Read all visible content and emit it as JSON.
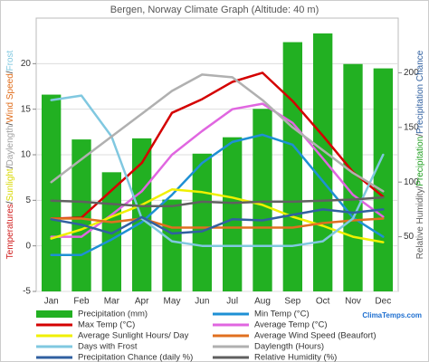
{
  "chart_data": {
    "type": "combo",
    "title": "Bergen, Norway Climate Graph (Altitude: 40 m)",
    "left_axis_label": [
      {
        "text": "Temperatures",
        "color": "#d02020"
      },
      {
        "text": "/",
        "color": "#333333"
      },
      {
        "text": "Sunlight",
        "color": "#d8d800"
      },
      {
        "text": "/",
        "color": "#333333"
      },
      {
        "text": "Daylength",
        "color": "#a0a0a0"
      },
      {
        "text": "/",
        "color": "#333333"
      },
      {
        "text": "Wind Speed",
        "color": "#e07020"
      },
      {
        "text": "/",
        "color": "#333333"
      },
      {
        "text": "Frost",
        "color": "#80c8e0"
      }
    ],
    "right_axis_label": [
      {
        "text": "Relative Humidity",
        "color": "#606060"
      },
      {
        "text": "/",
        "color": "#333333"
      },
      {
        "text": "Precipitation",
        "color": "#22a022"
      },
      {
        "text": "/",
        "color": "#333333"
      },
      {
        "text": "Precipitation Chance",
        "color": "#3060a0"
      }
    ],
    "source": "ClimaTemps.com",
    "categories": [
      "Jan",
      "Feb",
      "Mar",
      "Apr",
      "May",
      "Jun",
      "Jul",
      "Aug",
      "Sep",
      "Oct",
      "Nov",
      "Dec"
    ],
    "ylim": [
      -5,
      25
    ],
    "yticks": [
      -5,
      0,
      5,
      10,
      15,
      20
    ],
    "y2lim": [
      0,
      250
    ],
    "y2ticks": [
      50,
      100,
      150,
      200
    ],
    "grid": true,
    "series": [
      {
        "name": "Precipitation (mm)",
        "kind": "bar",
        "axis": "y2",
        "color": "#22b022",
        "values": [
          180,
          139,
          109,
          140,
          84,
          126,
          141,
          167,
          228,
          236,
          208,
          204
        ]
      },
      {
        "name": "Min Temp (°C)",
        "kind": "line",
        "color": "#1e90d4",
        "values": [
          -1,
          -1,
          0.7,
          2.6,
          5.6,
          9.1,
          11.4,
          12.2,
          11.1,
          7.1,
          3.1,
          1.0
        ]
      },
      {
        "name": "Max Temp (°C)",
        "kind": "line",
        "color": "#d40000",
        "values": [
          3,
          3.1,
          6.1,
          9.1,
          14.6,
          16.1,
          18.0,
          19.0,
          15.9,
          12.1,
          8.1,
          5.4
        ]
      },
      {
        "name": "Average Temp (°C)",
        "kind": "line",
        "color": "#e066e0",
        "values": [
          1,
          1,
          3.4,
          6,
          10,
          12.6,
          15,
          15.6,
          13.5,
          9.6,
          5.6,
          3.2
        ]
      },
      {
        "name": "Average Sunlight Hours/ Day",
        "kind": "line",
        "color": "#f0f000",
        "values": [
          0.8,
          1.8,
          3.2,
          4.5,
          6.2,
          5.9,
          5.3,
          4.5,
          3.2,
          2.2,
          1.0,
          0.4
        ]
      },
      {
        "name": "Average Wind Speed (Beaufort)",
        "kind": "line",
        "color": "#e07020",
        "values": [
          3,
          3,
          2.6,
          3,
          2,
          2,
          2,
          2,
          2,
          2.5,
          2.8,
          3
        ]
      },
      {
        "name": "Days with Frost",
        "kind": "line",
        "color": "#80c8e0",
        "values": [
          16,
          16.5,
          12,
          3,
          0.5,
          0,
          0,
          0,
          0,
          0.5,
          3,
          10
        ]
      },
      {
        "name": "Daylength (Hours)",
        "kind": "line",
        "color": "#b0b0b0",
        "values": [
          7,
          9.5,
          12,
          14.5,
          17,
          18.8,
          18.5,
          16,
          13,
          10.5,
          8,
          6
        ]
      },
      {
        "name": "Precipitation Chance (daily %)",
        "kind": "line",
        "axis": "y2",
        "color": "#3060a0",
        "values": [
          66,
          61,
          53,
          68,
          53,
          55,
          66,
          65,
          70,
          75,
          72,
          75
        ]
      },
      {
        "name": "Relative Humidity (%)",
        "kind": "line",
        "axis": "y2",
        "color": "#606060",
        "values": [
          83,
          82,
          80,
          78,
          78,
          82,
          81,
          82,
          82,
          83,
          84,
          86
        ]
      }
    ]
  }
}
